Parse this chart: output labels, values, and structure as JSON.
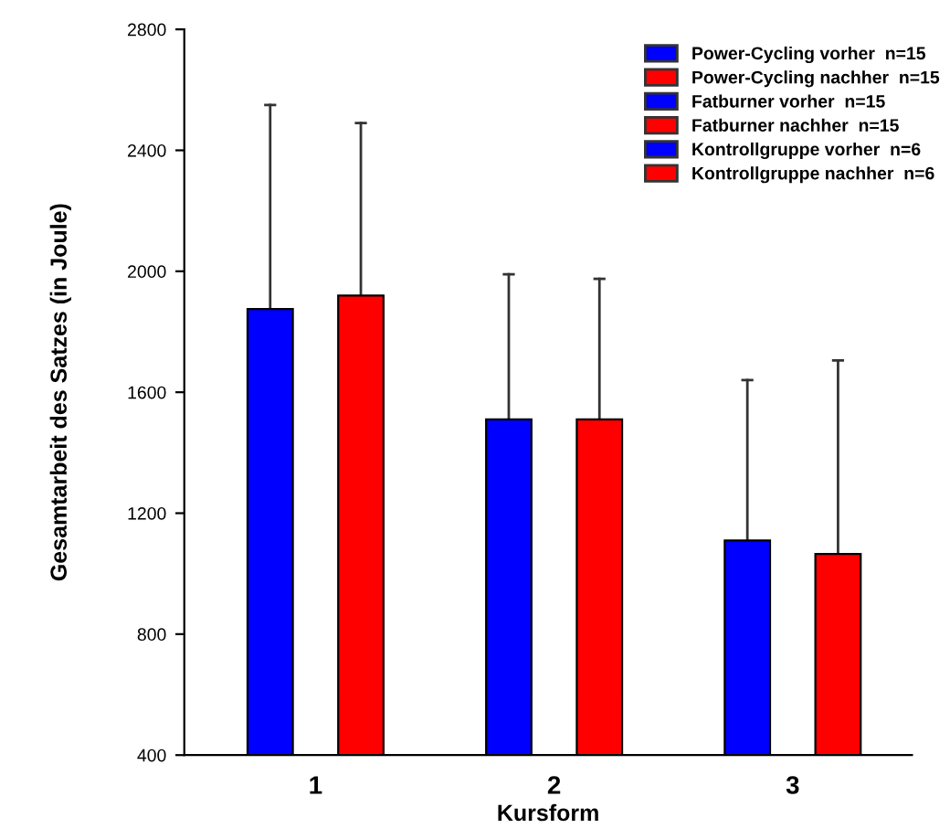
{
  "chart_data": {
    "type": "bar",
    "xlabel": "Kursform",
    "ylabel": "Gesamtarbeit des Satzes (in Joule)",
    "categories": [
      "1",
      "2",
      "3"
    ],
    "series": [
      {
        "name": "Power-Cycling vorher  n=15",
        "color": "#0000ff",
        "values": [
          1875,
          null,
          null
        ],
        "errors": [
          [
            1875,
            2550
          ],
          null,
          null
        ]
      },
      {
        "name": "Power-Cycling nachher  n=15",
        "color": "#ff0000",
        "values": [
          1920,
          null,
          null
        ],
        "errors": [
          [
            1920,
            2490
          ],
          null,
          null
        ]
      },
      {
        "name": "Fatburner vorher  n=15",
        "color": "#0000ff",
        "values": [
          null,
          1510,
          null
        ],
        "errors": [
          null,
          [
            1510,
            1990
          ],
          null
        ]
      },
      {
        "name": "Fatburner nachher  n=15",
        "color": "#ff0000",
        "values": [
          null,
          1510,
          null
        ],
        "errors": [
          null,
          [
            1510,
            1975
          ],
          null
        ]
      },
      {
        "name": "Kontrollgruppe vorher  n=6",
        "color": "#0000ff",
        "values": [
          null,
          null,
          1110
        ],
        "errors": [
          null,
          null,
          [
            1110,
            1640
          ]
        ]
      },
      {
        "name": "Kontrollgruppe nachher  n=6",
        "color": "#ff0000",
        "values": [
          null,
          null,
          1065
        ],
        "errors": [
          null,
          null,
          [
            1065,
            1705
          ]
        ]
      }
    ],
    "ylim": [
      400,
      2800
    ],
    "yticks": [
      400,
      800,
      1200,
      1600,
      2000,
      2400,
      2800
    ],
    "grid": false,
    "legend": "top right"
  }
}
